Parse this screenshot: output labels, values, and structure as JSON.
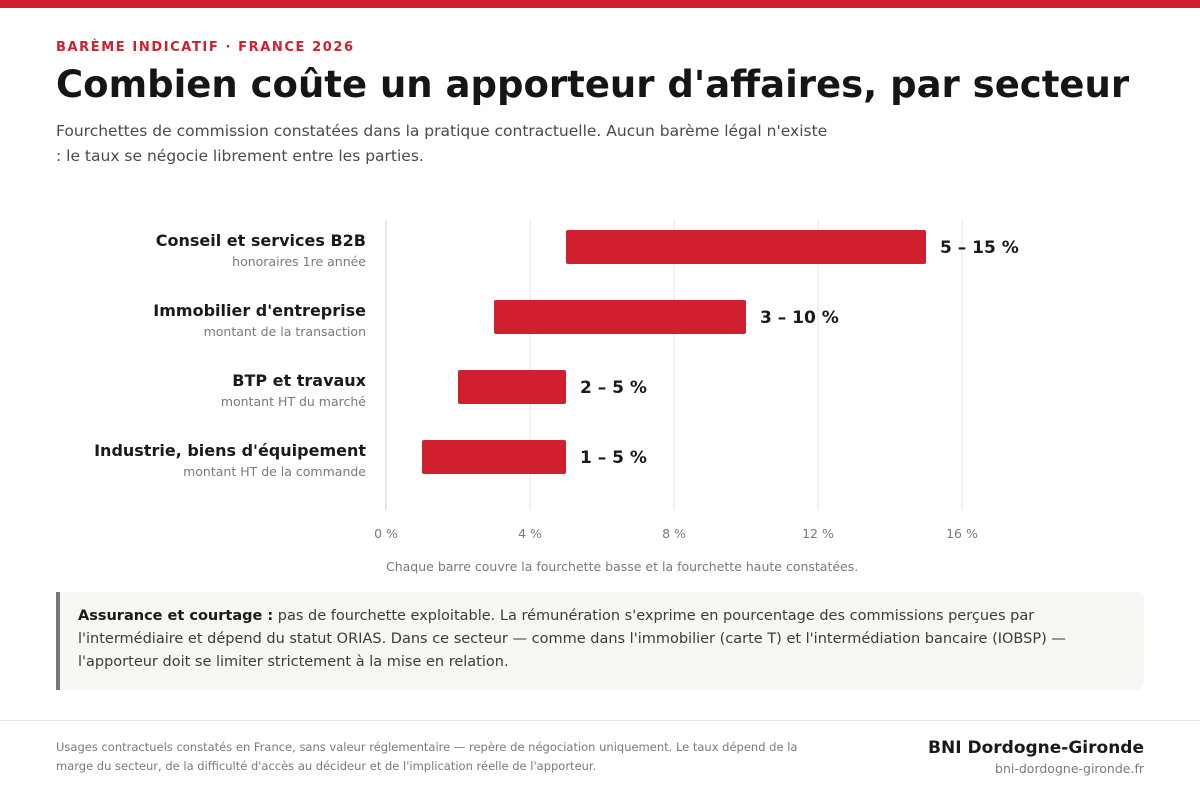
{
  "header": {
    "eyebrow": "BARÈME INDICATIF · FRANCE 2026",
    "title": "Combien coûte un apporteur d'affaires, par secteur",
    "subtitle": "Fourchettes de commission constatées dans la pratique contractuelle. Aucun barème légal n'existe : le taux se négocie librement entre les parties."
  },
  "chart_data": {
    "type": "bar",
    "orientation": "horizontal",
    "range_bars": true,
    "categories": [
      "Conseil et services B2B",
      "Immobilier d'entreprise",
      "BTP et travaux",
      "Industrie, biens d'équipement"
    ],
    "category_sublabels": [
      "honoraires 1re année",
      "montant de la transaction",
      "montant HT du marché",
      "montant HT de la commande"
    ],
    "series": [
      {
        "low": [
          5,
          3,
          2,
          1
        ],
        "high": [
          15,
          10,
          5,
          5
        ],
        "data_labels": [
          "5 – 15 %",
          "3 – 10 %",
          "2 – 5 %",
          "1 – 5 %"
        ]
      }
    ],
    "xlim": [
      0,
      16
    ],
    "xticks": [
      0,
      4,
      8,
      12,
      16
    ],
    "xtick_labels": [
      "0 %",
      "4 %",
      "8 %",
      "12 %",
      "16 %"
    ],
    "xlabel": "",
    "ylabel": "",
    "grid": true,
    "legend": "none",
    "note": "Chaque barre couvre la fourchette basse et la fourchette haute constatées."
  },
  "callout": {
    "lead": "Assurance et courtage :",
    "text": "pas de fourchette exploitable. La rémunération s'exprime en pourcentage des commissions perçues par l'intermédiaire et dépend du statut ORIAS. Dans ce secteur — comme dans l'immobilier (carte T) et l'intermédiation bancaire (IOBSP) — l'apporteur doit se limiter strictement à la mise en relation."
  },
  "footer": {
    "note": "Usages contractuels constatés en France, sans valeur réglementaire — repère de négociation uniquement. Le taux dépend de la marge du secteur, de la difficulté d'accès au décideur et de l'implication réelle de l'apporteur.",
    "brand": "BNI Dordogne-Gironde",
    "url": "bni-dordogne-gironde.fr"
  },
  "colors": {
    "accent": "#d0202f",
    "top_bar": "#d0202f",
    "gridline": "#e6e6e6",
    "callout_bg": "#f7f6f2"
  }
}
